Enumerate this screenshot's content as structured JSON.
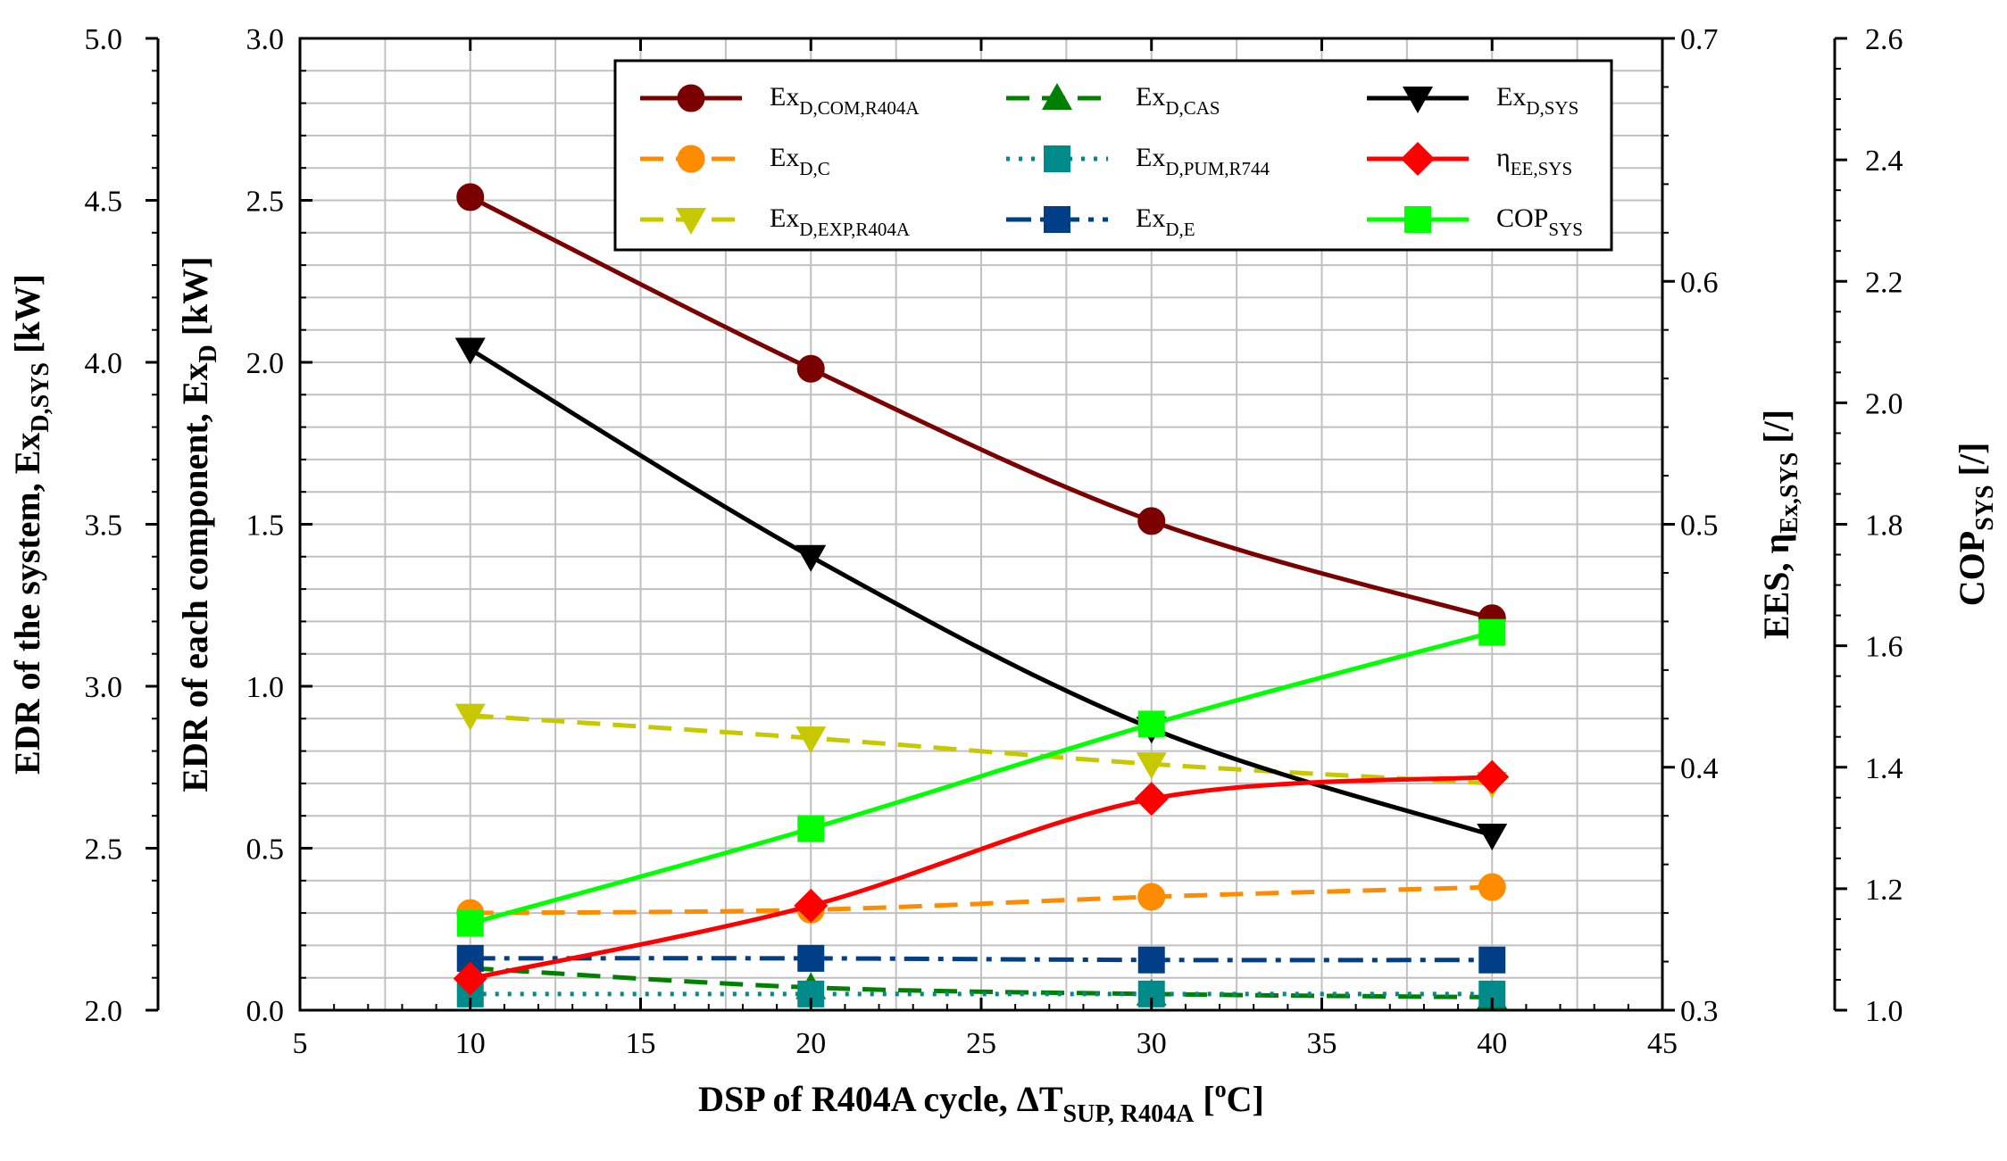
{
  "chart_data": {
    "type": "line",
    "x_axis": {
      "label": "DSP of R404A cycle, ΔT",
      "label_sub": "SUP, R404A",
      "label_unit_open": " [",
      "label_unit_sup": "o",
      "label_unit_close": "C]",
      "range": [
        5,
        45
      ],
      "ticks": [
        5,
        10,
        15,
        20,
        25,
        30,
        35,
        40,
        45
      ]
    },
    "y_axes": {
      "component": {
        "label": "EDR of each component, Ex",
        "label_sub": "D",
        "label_unit": " [kW]",
        "range": [
          0.0,
          3.0
        ],
        "ticks": [
          "0.0",
          "0.5",
          "1.0",
          "1.5",
          "2.0",
          "2.5",
          "3.0"
        ]
      },
      "system": {
        "label": "EDR of the system, Ex",
        "label_sub": "D,SYS",
        "label_unit": " [kW]",
        "range": [
          2.0,
          5.0
        ],
        "ticks": [
          "2.0",
          "2.5",
          "3.0",
          "3.5",
          "4.0",
          "4.5",
          "5.0"
        ]
      },
      "ees": {
        "label": "EES, η",
        "label_sub": "Ex,SYS",
        "label_unit": " [/]",
        "range": [
          0.3,
          0.7
        ],
        "ticks": [
          "0.3",
          "0.4",
          "0.5",
          "0.6",
          "0.7"
        ]
      },
      "cop": {
        "label": "COP",
        "label_sub": "SYS",
        "label_unit": " [/]",
        "range": [
          1.0,
          2.6
        ],
        "ticks": [
          "1.0",
          "1.2",
          "1.4",
          "1.6",
          "1.8",
          "2.0",
          "2.2",
          "2.4",
          "2.6"
        ]
      }
    },
    "grid": true,
    "legend_position": "top-right",
    "series": [
      {
        "name": "Ex",
        "sub": "D,COM,R404A",
        "axis": "component",
        "color": "#7b0000",
        "dash": "solid",
        "marker": "circle",
        "x": [
          10,
          20,
          30,
          40
        ],
        "values": [
          2.51,
          1.98,
          1.51,
          1.21
        ]
      },
      {
        "name": "Ex",
        "sub": "D,C",
        "axis": "component",
        "color": "#ff8c00",
        "dash": "dashed",
        "marker": "circle",
        "x": [
          10,
          20,
          30,
          40
        ],
        "values": [
          0.3,
          0.31,
          0.35,
          0.38
        ]
      },
      {
        "name": "Ex",
        "sub": "D,EXP,R404A",
        "axis": "component",
        "color": "#c8c800",
        "dash": "dashed",
        "marker": "triangle-down",
        "x": [
          10,
          20,
          30,
          40
        ],
        "values": [
          0.91,
          0.84,
          0.76,
          0.7
        ]
      },
      {
        "name": "Ex",
        "sub": "D,CAS",
        "axis": "component",
        "color": "#008000",
        "dash": "dashed",
        "marker": "triangle-up",
        "x": [
          10,
          20,
          30,
          40
        ],
        "values": [
          0.13,
          0.07,
          0.05,
          0.04
        ]
      },
      {
        "name": "Ex",
        "sub": "D,PUM,R744",
        "axis": "component",
        "color": "#008b8b",
        "dash": "dotted",
        "marker": "square",
        "x": [
          10,
          20,
          30,
          40
        ],
        "values": [
          0.05,
          0.05,
          0.05,
          0.05
        ]
      },
      {
        "name": "Ex",
        "sub": "D,E",
        "axis": "component",
        "color": "#003f87",
        "dash": "dashdot",
        "marker": "square",
        "x": [
          10,
          20,
          30,
          40
        ],
        "values": [
          0.16,
          0.16,
          0.155,
          0.155
        ]
      },
      {
        "name": "Ex",
        "sub": "D,SYS",
        "axis": "system",
        "color": "#000000",
        "dash": "solid",
        "marker": "triangle-down",
        "x": [
          10,
          20,
          30,
          40
        ],
        "values": [
          4.04,
          3.4,
          2.87,
          2.54
        ]
      },
      {
        "name": "η",
        "sub": "EE,SYS",
        "axis": "ees",
        "color": "#ff0000",
        "dash": "solid",
        "marker": "diamond",
        "x": [
          10,
          20,
          30,
          40
        ],
        "values": [
          0.313,
          0.343,
          0.387,
          0.396
        ]
      },
      {
        "name": "COP",
        "sub": "SYS",
        "axis": "cop",
        "color": "#00ff00",
        "dash": "solid",
        "marker": "square",
        "x": [
          10,
          20,
          30,
          40
        ],
        "values": [
          1.143,
          1.299,
          1.471,
          1.622
        ]
      }
    ]
  }
}
